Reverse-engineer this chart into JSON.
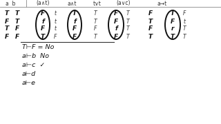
{
  "bg_color": "#ffffff",
  "header": [
    "a  b",
    "(a∧t)",
    "a∧t",
    "t∨t",
    "(a∨c)",
    "a→t"
  ],
  "col_a": [
    "T",
    "F",
    "T",
    "F"
  ],
  "col_b": [
    "T",
    "T",
    "F",
    "F"
  ],
  "oval1_vals": [
    "F",
    "f",
    "F",
    "T"
  ],
  "col_d": [
    "t",
    "t",
    "t",
    "F"
  ],
  "oval2_vals": [
    "T",
    "f",
    "F",
    "F"
  ],
  "col_f_left": [
    "T",
    "T",
    "F",
    "T"
  ],
  "oval3_vals": [
    "F",
    "F",
    "f",
    "F"
  ],
  "col_f_right": [
    "T",
    "T",
    "T",
    "T"
  ],
  "col_g_left": [
    "F",
    "T",
    "F",
    "T"
  ],
  "oval4_vals": [
    "T",
    "F",
    "r",
    "T"
  ],
  "col_g_right": [
    "F",
    "t",
    "T",
    "T"
  ],
  "bottom_lines": [
    "T⊢F = No",
    "a⊢b  No",
    "a⊢c  ✓",
    "a⊢d",
    "a⊢e"
  ]
}
